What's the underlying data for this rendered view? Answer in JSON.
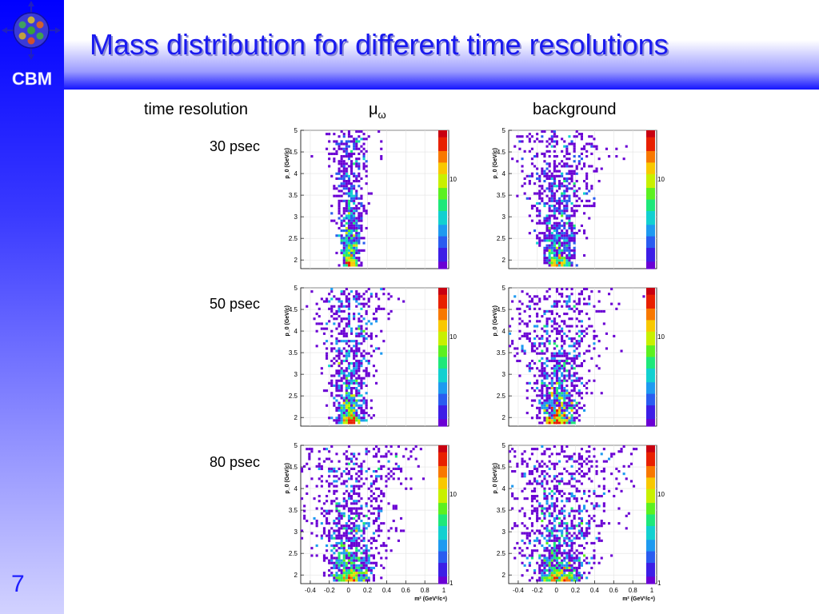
{
  "slide": {
    "title": "Mass distribution for different time resolutions",
    "page_number": "7",
    "logo_text": "CBM"
  },
  "headers": {
    "time_resolution": "time resolution",
    "mu_symbol": "μ",
    "mu_subscript": "ω",
    "background": "background"
  },
  "row_labels": [
    "30 psec",
    "50 psec",
    "80 psec"
  ],
  "colors": {
    "title": "#1a1af0",
    "sidebar_top": "#0000ff",
    "page_number": "#1e1eff"
  },
  "chart_data": [
    {
      "type": "heatmap",
      "panel": "mu_omega",
      "time_resolution": "30 psec",
      "xlim": [
        -0.5,
        1.05
      ],
      "ylim": [
        1.8,
        5
      ],
      "zscale": "log",
      "spread": 0.03,
      "xlabel": "",
      "ylabel": "p_0 (GeV/c)",
      "colorbar_label": "10",
      "yticks": [
        2,
        2.5,
        3,
        3.5,
        4,
        4.5,
        5
      ],
      "xticks": []
    },
    {
      "type": "heatmap",
      "panel": "background",
      "time_resolution": "30 psec",
      "xlim": [
        -0.5,
        1.05
      ],
      "ylim": [
        1.8,
        5
      ],
      "zscale": "log",
      "spread": 0.06,
      "xlabel": "",
      "ylabel": "p_0 (GeV/c)",
      "colorbar_label": "10",
      "yticks": [
        2,
        2.5,
        3,
        3.5,
        4,
        4.5,
        5
      ],
      "xticks": []
    },
    {
      "type": "heatmap",
      "panel": "mu_omega",
      "time_resolution": "50 psec",
      "xlim": [
        -0.5,
        1.05
      ],
      "ylim": [
        1.8,
        5
      ],
      "zscale": "log",
      "spread": 0.05,
      "xlabel": "",
      "ylabel": "p_0 (GeV/c)",
      "colorbar_label": "10",
      "yticks": [
        2,
        2.5,
        3,
        3.5,
        4,
        4.5,
        5
      ],
      "xticks": []
    },
    {
      "type": "heatmap",
      "panel": "background",
      "time_resolution": "50 psec",
      "xlim": [
        -0.5,
        1.05
      ],
      "ylim": [
        1.8,
        5
      ],
      "zscale": "log",
      "spread": 0.08,
      "xlabel": "",
      "ylabel": "p_0 (GeV/c)",
      "colorbar_label": "10",
      "yticks": [
        2,
        2.5,
        3,
        3.5,
        4,
        4.5,
        5
      ],
      "xticks": []
    },
    {
      "type": "heatmap",
      "panel": "mu_omega",
      "time_resolution": "80 psec",
      "xlim": [
        -0.5,
        1.05
      ],
      "ylim": [
        1.8,
        5
      ],
      "zscale": "log",
      "spread": 0.09,
      "xlabel": "m² (GeV²/c⁴)",
      "ylabel": "p_0 (GeV/c)",
      "colorbar_label": "10",
      "colorbar_min_label": "1",
      "yticks": [
        2,
        2.5,
        3,
        3.5,
        4,
        4.5,
        5
      ],
      "xticks": [
        -0.4,
        -0.2,
        0,
        0.2,
        0.4,
        0.6,
        0.8,
        1
      ]
    },
    {
      "type": "heatmap",
      "panel": "background",
      "time_resolution": "80 psec",
      "xlim": [
        -0.5,
        1.05
      ],
      "ylim": [
        1.8,
        5
      ],
      "zscale": "log",
      "spread": 0.11,
      "xlabel": "m² (GeV²/c⁴)",
      "ylabel": "p_0 (GeV/c)",
      "colorbar_label": "10",
      "colorbar_min_label": "1",
      "yticks": [
        2,
        2.5,
        3,
        3.5,
        4,
        4.5,
        5
      ],
      "xticks": [
        -0.4,
        -0.2,
        0,
        0.2,
        0.4,
        0.6,
        0.8,
        1
      ]
    }
  ]
}
